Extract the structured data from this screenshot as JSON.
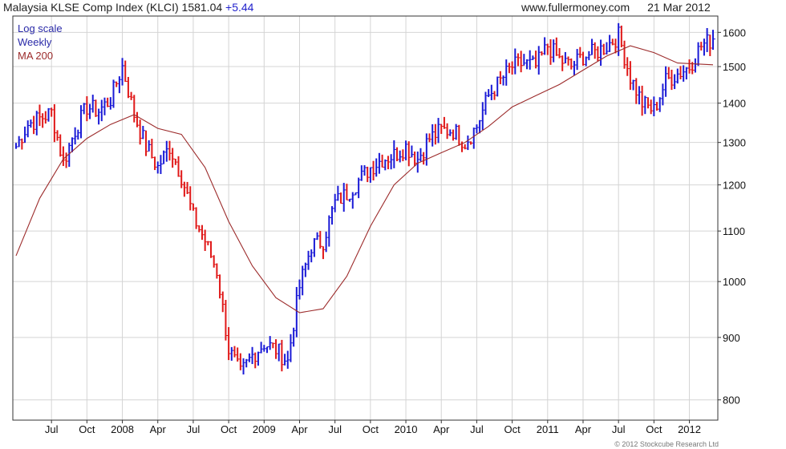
{
  "header": {
    "title": "Malaysia KLSE Comp Index (KLCI)",
    "last_price": "1581.04",
    "change": "+5.44",
    "site": "www.fullermoney.com",
    "date": "21 Mar 2012"
  },
  "legend": {
    "scale": "Log scale",
    "period": "Weekly",
    "ma": "MA 200"
  },
  "footer": "© 2012 Stockcube Research Ltd",
  "colors": {
    "up": "#1a1ad6",
    "down": "#e01818",
    "ma": "#9c2b2b",
    "grid": "#d4d4d4",
    "legend_text": "#2a2aa8",
    "legend_ma": "#9c2b2b"
  },
  "chart_data": {
    "type": "line",
    "y_scale": "log",
    "ylim": [
      770,
      1650
    ],
    "grid": true,
    "x_ticks": [
      "Jul",
      "Oct",
      "2008",
      "Apr",
      "Jul",
      "Oct",
      "2009",
      "Apr",
      "Jul",
      "Oct",
      "2010",
      "Apr",
      "Jul",
      "Oct",
      "2011",
      "Apr",
      "Jul",
      "Oct",
      "2012"
    ],
    "y_ticks": [
      800,
      900,
      1000,
      1100,
      1200,
      1300,
      1400,
      1500,
      1600
    ],
    "series": [
      {
        "name": "Weekly",
        "x": [
          "2007-04",
          "2007-05",
          "2007-06",
          "2007-07",
          "2007-08",
          "2007-09",
          "2007-10",
          "2007-11",
          "2007-12",
          "2008-01",
          "2008-02",
          "2008-03",
          "2008-04",
          "2008-05",
          "2008-06",
          "2008-07",
          "2008-08",
          "2008-09",
          "2008-10",
          "2008-11",
          "2008-12",
          "2009-01",
          "2009-02",
          "2009-03",
          "2009-04",
          "2009-05",
          "2009-06",
          "2009-07",
          "2009-08",
          "2009-09",
          "2009-10",
          "2009-11",
          "2009-12",
          "2010-01",
          "2010-02",
          "2010-03",
          "2010-04",
          "2010-05",
          "2010-06",
          "2010-07",
          "2010-08",
          "2010-09",
          "2010-10",
          "2010-11",
          "2010-12",
          "2011-01",
          "2011-02",
          "2011-03",
          "2011-04",
          "2011-05",
          "2011-06",
          "2011-07",
          "2011-08",
          "2011-09",
          "2011-10",
          "2011-11",
          "2011-12",
          "2012-01",
          "2012-02",
          "2012-03"
        ],
        "values": [
          1290,
          1345,
          1360,
          1375,
          1250,
          1330,
          1390,
          1380,
          1410,
          1500,
          1370,
          1290,
          1240,
          1290,
          1220,
          1130,
          1080,
          1020,
          880,
          840,
          870,
          890,
          880,
          860,
          990,
          1070,
          1080,
          1160,
          1180,
          1210,
          1240,
          1260,
          1270,
          1290,
          1260,
          1310,
          1330,
          1330,
          1300,
          1340,
          1420,
          1460,
          1500,
          1510,
          1500,
          1560,
          1520,
          1500,
          1530,
          1540,
          1560,
          1590,
          1470,
          1400,
          1380,
          1460,
          1480,
          1500,
          1560,
          1580
        ]
      },
      {
        "name": "MA 200",
        "x": [
          "2007-04",
          "2007-06",
          "2007-08",
          "2007-10",
          "2007-12",
          "2008-02",
          "2008-04",
          "2008-06",
          "2008-08",
          "2008-10",
          "2008-12",
          "2009-02",
          "2009-04",
          "2009-06",
          "2009-08",
          "2009-10",
          "2009-12",
          "2010-02",
          "2010-04",
          "2010-06",
          "2010-08",
          "2010-10",
          "2010-12",
          "2011-02",
          "2011-04",
          "2011-06",
          "2011-08",
          "2011-10",
          "2011-12",
          "2012-03"
        ],
        "values": [
          1050,
          1170,
          1260,
          1310,
          1345,
          1370,
          1335,
          1320,
          1240,
          1120,
          1030,
          970,
          943,
          950,
          1010,
          1110,
          1200,
          1250,
          1275,
          1300,
          1340,
          1390,
          1420,
          1450,
          1490,
          1530,
          1560,
          1540,
          1510,
          1505
        ]
      }
    ]
  }
}
